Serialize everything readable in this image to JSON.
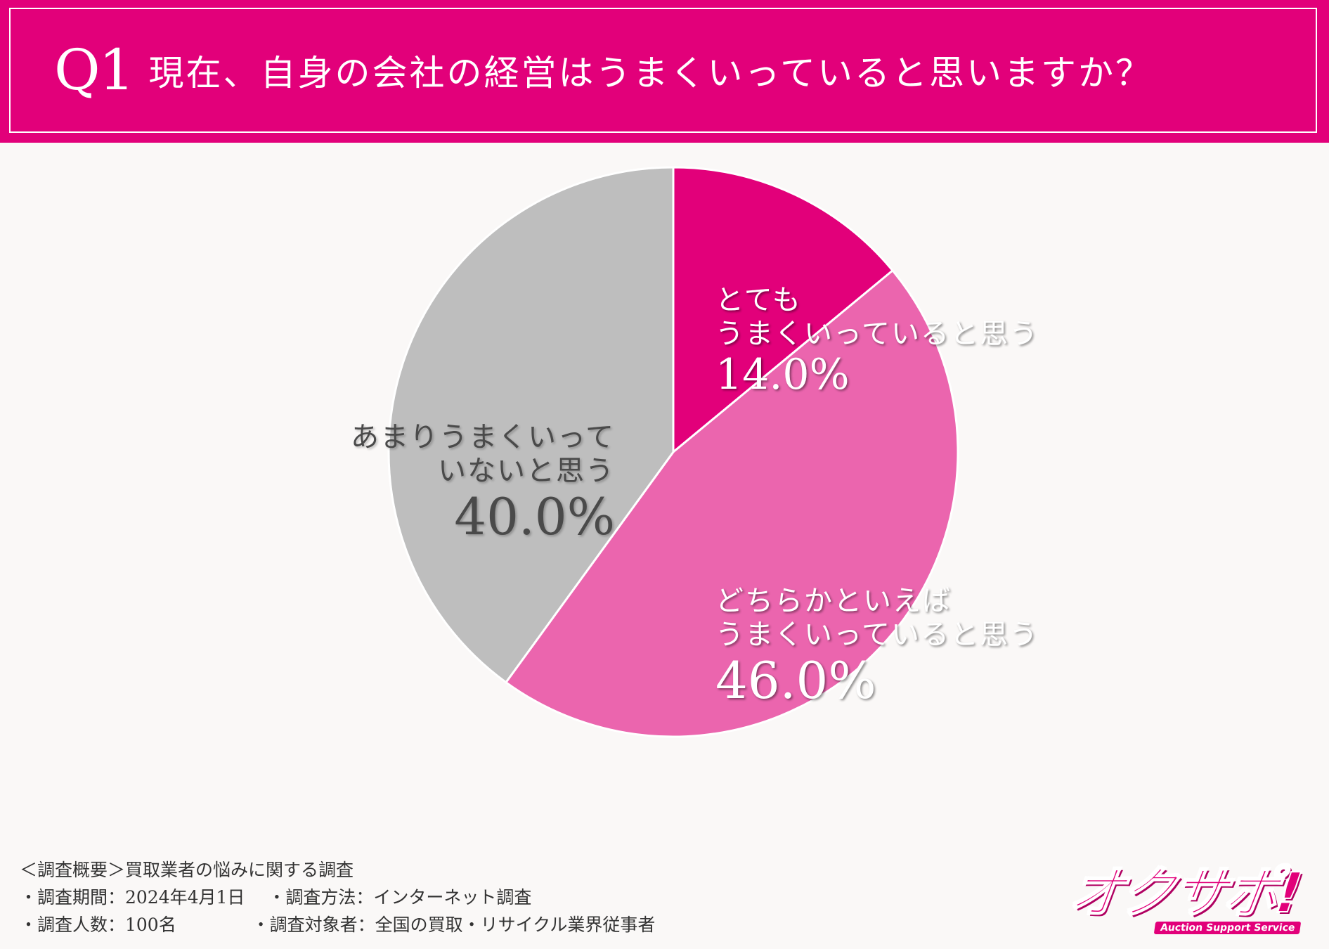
{
  "header": {
    "q_label": "Q1",
    "title": "現在、自身の会社の経営はうまくいっていると思いますか？"
  },
  "chart_data": {
    "type": "pie",
    "title": "現在、自身の会社の経営はうまくいっていると思いますか？",
    "slices": [
      {
        "label_line1": "とても",
        "label_line2": "うまくいっていると思う",
        "value": 14.0,
        "value_label": "14.0%",
        "color": "#e2007a"
      },
      {
        "label_line1": "どちらかといえば",
        "label_line2": "うまくいっていると思う",
        "value": 46.0,
        "value_label": "46.0%",
        "color": "#eb65ae"
      },
      {
        "label_line1": "あまりうまくいって",
        "label_line2": "いないと思う",
        "value": 40.0,
        "value_label": "40.0%",
        "color": "#bebebe"
      }
    ]
  },
  "footer": {
    "line1": "＜調査概要＞買取業者の悩みに関する調査",
    "line2": "・調査期間：2024年4月1日　 ・調査方法：インターネット調査",
    "line3": "・調査人数：100名　　　　 ・調査対象者：全国の買取・リサイクル業界従事者"
  },
  "logo": {
    "text": "オクサポ!",
    "subtitle": "Auction Support Service"
  }
}
